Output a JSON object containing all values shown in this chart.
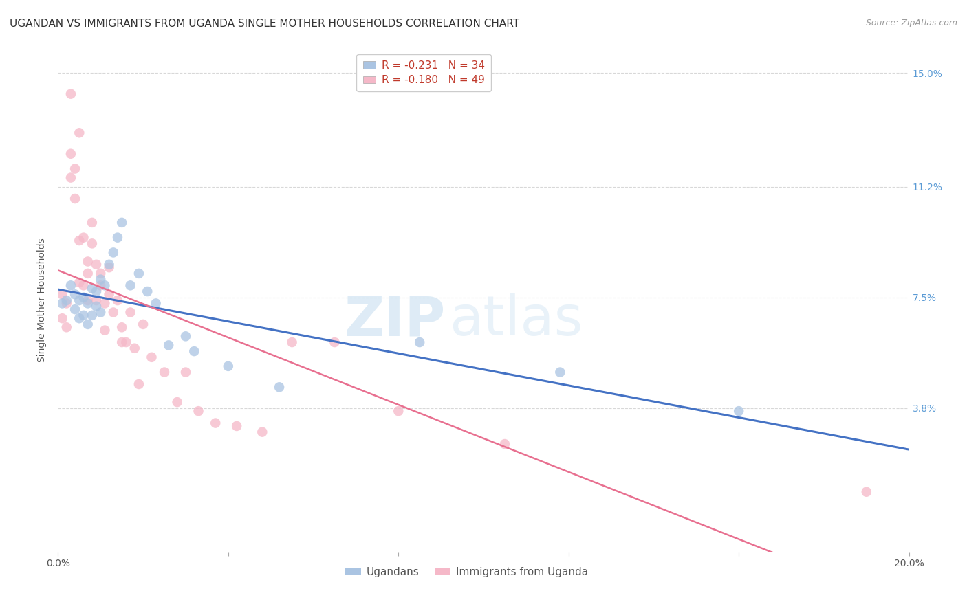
{
  "title": "UGANDAN VS IMMIGRANTS FROM UGANDA SINGLE MOTHER HOUSEHOLDS CORRELATION CHART",
  "source": "Source: ZipAtlas.com",
  "ylabel": "Single Mother Households",
  "x_min": 0.0,
  "x_max": 0.2,
  "y_min": -0.01,
  "y_max": 0.158,
  "y_ticks": [
    0.038,
    0.075,
    0.112,
    0.15
  ],
  "y_tick_labels": [
    "3.8%",
    "7.5%",
    "11.2%",
    "15.0%"
  ],
  "x_ticks": [
    0.0,
    0.04,
    0.08,
    0.12,
    0.16,
    0.2
  ],
  "x_tick_labels": [
    "0.0%",
    "",
    "",
    "",
    "",
    "20.0%"
  ],
  "blue_color": "#aac4e2",
  "pink_color": "#f5b8c8",
  "blue_line_color": "#4472c4",
  "pink_line_color": "#e87090",
  "watermark_zip": "ZIP",
  "watermark_atlas": "atlas",
  "ugandans_x": [
    0.001,
    0.002,
    0.003,
    0.004,
    0.004,
    0.005,
    0.005,
    0.006,
    0.006,
    0.007,
    0.007,
    0.008,
    0.008,
    0.009,
    0.009,
    0.01,
    0.01,
    0.011,
    0.012,
    0.013,
    0.014,
    0.015,
    0.017,
    0.019,
    0.021,
    0.023,
    0.026,
    0.03,
    0.032,
    0.04,
    0.052,
    0.085,
    0.118,
    0.16
  ],
  "ugandans_y": [
    0.073,
    0.074,
    0.079,
    0.076,
    0.071,
    0.074,
    0.068,
    0.075,
    0.069,
    0.073,
    0.066,
    0.078,
    0.069,
    0.077,
    0.072,
    0.081,
    0.07,
    0.079,
    0.086,
    0.09,
    0.095,
    0.1,
    0.079,
    0.083,
    0.077,
    0.073,
    0.059,
    0.062,
    0.057,
    0.052,
    0.045,
    0.06,
    0.05,
    0.037
  ],
  "immigrants_x": [
    0.001,
    0.001,
    0.002,
    0.002,
    0.003,
    0.003,
    0.003,
    0.004,
    0.004,
    0.005,
    0.005,
    0.005,
    0.006,
    0.006,
    0.007,
    0.007,
    0.007,
    0.008,
    0.008,
    0.009,
    0.009,
    0.01,
    0.01,
    0.011,
    0.011,
    0.012,
    0.012,
    0.013,
    0.014,
    0.015,
    0.015,
    0.016,
    0.017,
    0.018,
    0.019,
    0.02,
    0.022,
    0.025,
    0.028,
    0.03,
    0.033,
    0.037,
    0.042,
    0.048,
    0.055,
    0.065,
    0.08,
    0.105,
    0.19
  ],
  "immigrants_y": [
    0.076,
    0.068,
    0.073,
    0.065,
    0.143,
    0.123,
    0.115,
    0.118,
    0.108,
    0.13,
    0.08,
    0.094,
    0.095,
    0.079,
    0.087,
    0.074,
    0.083,
    0.1,
    0.093,
    0.086,
    0.074,
    0.083,
    0.079,
    0.073,
    0.064,
    0.085,
    0.076,
    0.07,
    0.074,
    0.065,
    0.06,
    0.06,
    0.07,
    0.058,
    0.046,
    0.066,
    0.055,
    0.05,
    0.04,
    0.05,
    0.037,
    0.033,
    0.032,
    0.03,
    0.06,
    0.06,
    0.037,
    0.026,
    0.01
  ],
  "background_color": "#ffffff",
  "grid_color": "#d8d8d8",
  "title_fontsize": 11,
  "axis_label_fontsize": 10,
  "tick_fontsize": 10,
  "right_tick_color": "#5b9bd5",
  "legend_r_color": "#c0392b",
  "legend_n_color": "#2980b9"
}
